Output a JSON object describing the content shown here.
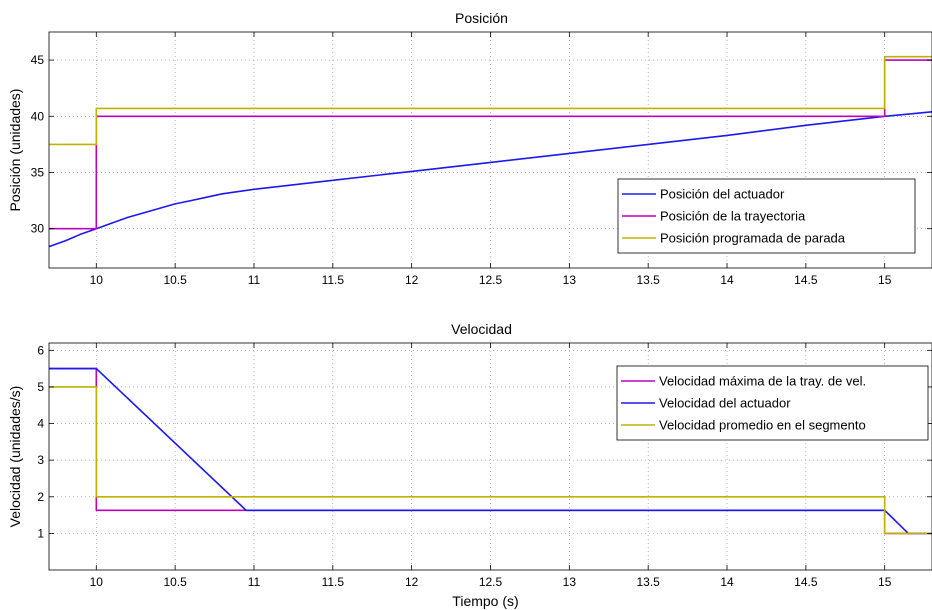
{
  "colors": {
    "blue": "#1a1aee",
    "magenta": "#c000c0",
    "olive": "#c0b000",
    "grid": "#888888",
    "axes": "#000000"
  },
  "chart_data": [
    {
      "type": "line",
      "title": "Posición",
      "xlabel": "",
      "ylabel": "Posición (unidades)",
      "xlim": [
        9.7,
        15.3
      ],
      "ylim": [
        26.5,
        47.5
      ],
      "xticks": [
        10,
        10.5,
        11,
        11.5,
        12,
        12.5,
        13,
        13.5,
        14,
        14.5,
        15
      ],
      "xtick_labels": [
        "10",
        "10.5",
        "11",
        "11.5",
        "12",
        "12.5",
        "13",
        "13.5",
        "14",
        "14.5",
        "15"
      ],
      "yticks": [
        30,
        35,
        40,
        45
      ],
      "ytick_labels": [
        "30",
        "35",
        "40",
        "45"
      ],
      "grid": true,
      "legend_position": "lower-right",
      "series": [
        {
          "name": "Posición del actuador",
          "color": "#1a1aee",
          "points": [
            [
              9.7,
              28.4
            ],
            [
              9.8,
              28.9
            ],
            [
              9.9,
              29.5
            ],
            [
              10.0,
              30.0
            ],
            [
              10.1,
              30.5
            ],
            [
              10.2,
              31.0
            ],
            [
              10.3,
              31.4
            ],
            [
              10.4,
              31.8
            ],
            [
              10.5,
              32.2
            ],
            [
              10.6,
              32.5
            ],
            [
              10.7,
              32.8
            ],
            [
              10.8,
              33.1
            ],
            [
              10.9,
              33.3
            ],
            [
              11.0,
              33.5
            ],
            [
              11.5,
              34.3
            ],
            [
              12.0,
              35.1
            ],
            [
              12.5,
              35.9
            ],
            [
              13.0,
              36.7
            ],
            [
              13.5,
              37.5
            ],
            [
              14.0,
              38.3
            ],
            [
              14.5,
              39.2
            ],
            [
              15.0,
              40.0
            ],
            [
              15.3,
              40.4
            ]
          ]
        },
        {
          "name": "Posición de la trayectoria",
          "color": "#c000c0",
          "points": [
            [
              9.7,
              30.0
            ],
            [
              10.0,
              30.0
            ],
            [
              10.0,
              40.0
            ],
            [
              15.0,
              40.0
            ],
            [
              15.0,
              45.0
            ],
            [
              15.3,
              45.0
            ]
          ]
        },
        {
          "name": "Posición programada de parada",
          "color": "#c0b000",
          "points": [
            [
              9.7,
              37.5
            ],
            [
              10.0,
              37.5
            ],
            [
              10.0,
              40.7
            ],
            [
              15.0,
              40.7
            ],
            [
              15.0,
              45.3
            ],
            [
              15.3,
              45.3
            ]
          ]
        }
      ]
    },
    {
      "type": "line",
      "title": "Velocidad",
      "xlabel": "Tiempo (s)",
      "ylabel": "Velocidad (unidades/s)",
      "xlim": [
        9.7,
        15.3
      ],
      "ylim": [
        0,
        6.2
      ],
      "xticks": [
        10,
        10.5,
        11,
        11.5,
        12,
        12.5,
        13,
        13.5,
        14,
        14.5,
        15
      ],
      "xtick_labels": [
        "10",
        "10.5",
        "11",
        "11.5",
        "12",
        "12.5",
        "13",
        "13.5",
        "14",
        "14.5",
        "15"
      ],
      "yticks": [
        1,
        2,
        3,
        4,
        5,
        6
      ],
      "ytick_labels": [
        "1",
        "2",
        "3",
        "4",
        "5",
        "6"
      ],
      "grid": true,
      "legend_position": "top-right",
      "series": [
        {
          "name": "Velocidad máxima de la tray. de vel.",
          "color": "#c000c0",
          "points": [
            [
              9.7,
              5.5
            ],
            [
              10.0,
              5.5
            ],
            [
              10.0,
              1.63
            ],
            [
              15.0,
              1.63
            ],
            [
              15.0,
              1.0
            ],
            [
              15.3,
              1.0
            ]
          ]
        },
        {
          "name": "Velocidad del actuador",
          "color": "#1a1aee",
          "points": [
            [
              9.7,
              5.5
            ],
            [
              10.0,
              5.5
            ],
            [
              10.95,
              1.63
            ],
            [
              15.0,
              1.63
            ],
            [
              15.15,
              1.0
            ],
            [
              15.3,
              1.0
            ]
          ]
        },
        {
          "name": "Velocidad promedio en el segmento",
          "color": "#c0b000",
          "points": [
            [
              9.7,
              5.0
            ],
            [
              10.0,
              5.0
            ],
            [
              10.0,
              2.0
            ],
            [
              15.0,
              2.0
            ],
            [
              15.0,
              1.0
            ],
            [
              15.3,
              1.0
            ]
          ]
        }
      ]
    }
  ]
}
